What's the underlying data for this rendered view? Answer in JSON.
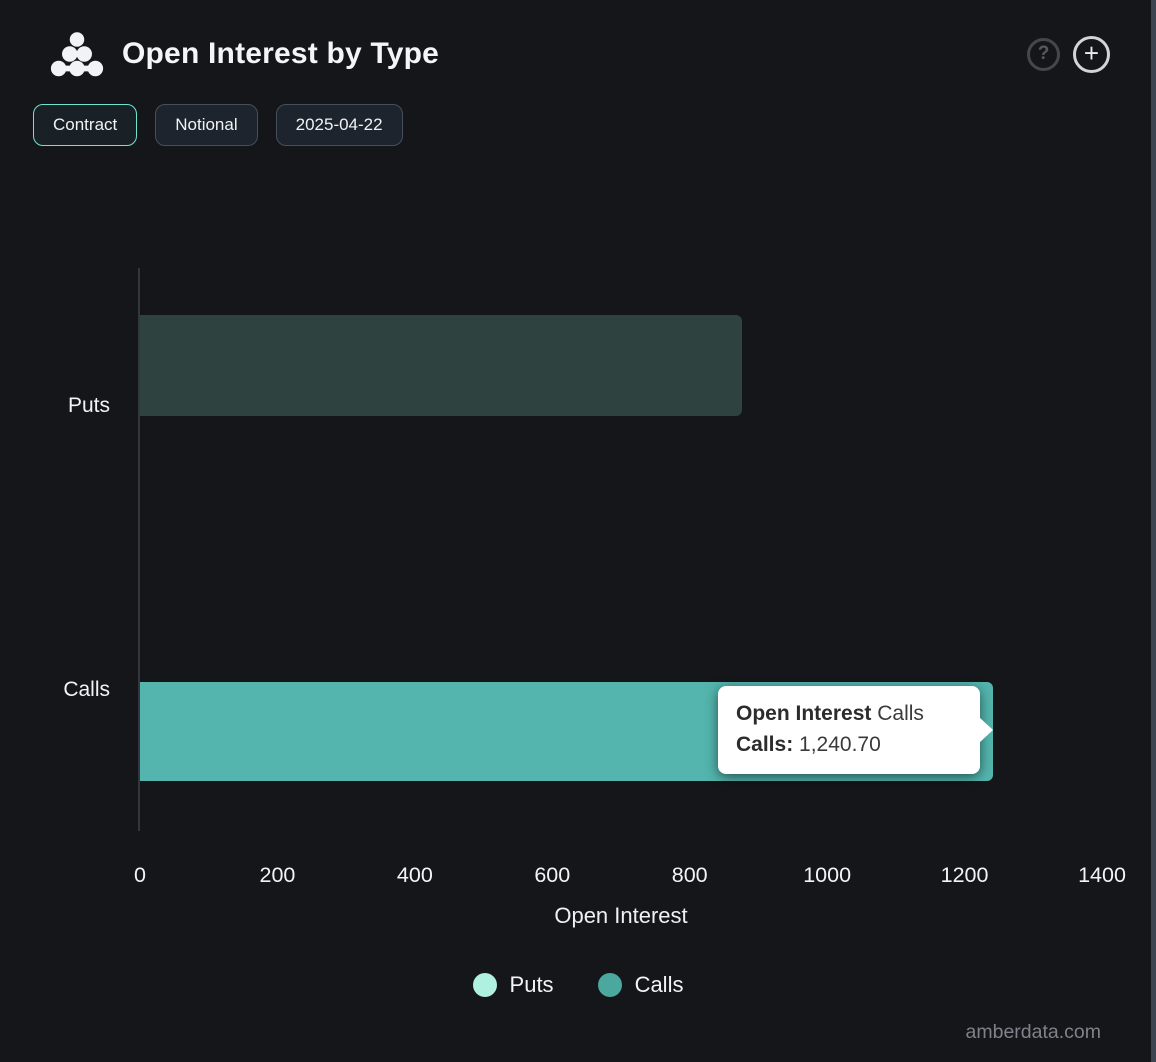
{
  "header": {
    "title": "Open Interest by Type",
    "help_label": "?",
    "add_label": "+"
  },
  "toolbar": {
    "contract_label": "Contract",
    "notional_label": "Notional",
    "date_label": "2025-04-22"
  },
  "chart_data": {
    "type": "bar",
    "orientation": "horizontal",
    "title": "Open Interest by Type",
    "categories": [
      "Puts",
      "Calls"
    ],
    "series": [
      {
        "name": "Puts",
        "legend_color": "#aff0e1",
        "bar_color": "#2e4340",
        "state": "dimmed",
        "values": [
          876,
          null
        ]
      },
      {
        "name": "Calls",
        "legend_color": "#4aa89f",
        "bar_color": "#53b5ad",
        "state": "hovered",
        "values": [
          null,
          1240.7
        ]
      }
    ],
    "xlabel": "Open Interest",
    "xlim": [
      0,
      1400
    ],
    "xticks": [
      "0",
      "200",
      "400",
      "600",
      "800",
      "1000",
      "1200",
      "1400"
    ],
    "grid": false,
    "legend_position": "bottom"
  },
  "tooltip": {
    "series_label_bold": "Open Interest",
    "series_label_rest": "Calls",
    "point_label_bold": "Calls:",
    "point_value": "1,240.70"
  },
  "watermark": "amberdata.com"
}
